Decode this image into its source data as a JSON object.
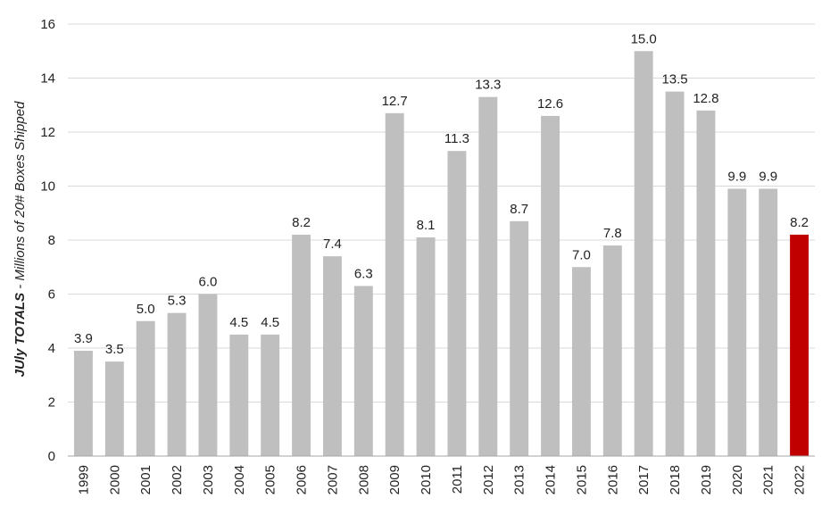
{
  "chart_data": {
    "type": "bar",
    "categories": [
      "1999",
      "2000",
      "2001",
      "2002",
      "2003",
      "2004",
      "2005",
      "2006",
      "2007",
      "2008",
      "2009",
      "2010",
      "2011",
      "2012",
      "2013",
      "2014",
      "2015",
      "2016",
      "2017",
      "2018",
      "2019",
      "2020",
      "2021",
      "2022"
    ],
    "values": [
      3.9,
      3.5,
      5.0,
      5.3,
      6.0,
      4.5,
      4.5,
      8.2,
      7.4,
      6.3,
      12.7,
      8.1,
      11.3,
      13.3,
      8.7,
      12.6,
      7.0,
      7.8,
      15.0,
      13.5,
      12.8,
      9.9,
      9.9,
      8.2
    ],
    "data_labels": [
      "3.9",
      "3.5",
      "5.0",
      "5.3",
      "6.0",
      "4.5",
      "4.5",
      "8.2",
      "7.4",
      "6.3",
      "12.7",
      "8.1",
      "11.3",
      "13.3",
      "8.7",
      "12.6",
      "7.0",
      "7.8",
      "15.0",
      "13.5",
      "12.8",
      "9.9",
      "9.9",
      "8.2"
    ],
    "highlight_index": 23,
    "ylabel_bold": "JUly TOTALS",
    "ylabel_rest": " - Millions of 20# Boxes Shipped",
    "ylim": [
      0,
      16
    ],
    "yticks": [
      "0",
      "2",
      "4",
      "6",
      "8",
      "10",
      "12",
      "14",
      "16"
    ],
    "grid": true,
    "legend": "none",
    "colors": {
      "bar": "#bfbfbf",
      "highlight": "#c00000",
      "grid": "#d9d9d9",
      "axis": "#a6a6a6"
    }
  }
}
